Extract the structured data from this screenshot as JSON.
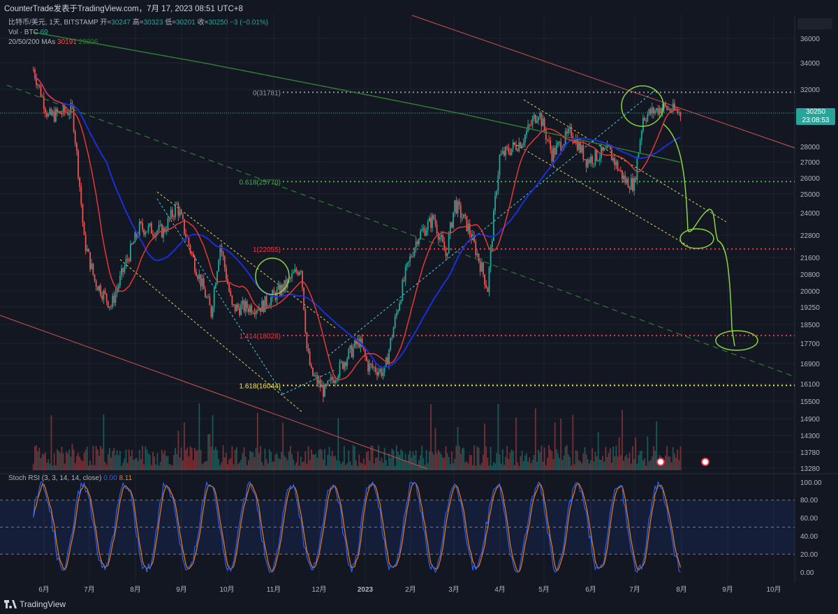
{
  "header": {
    "title": "CounterTrade发表于TradingView.com，7月 17, 2023 08:51 UTC+8"
  },
  "legend": {
    "symbol": "比特币/美元, 1天, BITSTAMP",
    "open_label": "开=",
    "open": "30247",
    "high_label": "高=",
    "high": "30323",
    "low_label": "低=",
    "low": "30201",
    "close_label": "收=",
    "close": "30250",
    "change": "−3 (−0.01%)",
    "vol_label": "Vol · BTC",
    "vol": "69",
    "ma_label": "20/50/200 MAs",
    "ma20": "30191",
    "ma50": "",
    "ma200": "29806"
  },
  "rsi_legend": {
    "label": "Stoch RSI (3, 3, 14, 14, close)",
    "k": "0.00",
    "d": "8.11"
  },
  "price_badge": {
    "price": "30250",
    "timer": "23:08:53"
  },
  "footer": {
    "brand": "TradingView"
  },
  "colors": {
    "up": "#26a69a",
    "down": "#ef5350",
    "ma20": "#e53935",
    "ma50": "#1a2fd6",
    "ma200": "#2e7d32",
    "bg": "#131722"
  },
  "chart_data": [
    {
      "type": "candlestick",
      "symbol": "BTC/USD",
      "y_ticks": [
        "36000",
        "34000",
        "32000",
        "30250",
        "28000",
        "27000",
        "26000",
        "25000",
        "24000",
        "22800",
        "21600",
        "20800",
        "20000",
        "19250",
        "18500",
        "17700",
        "16900",
        "16100",
        "15500",
        "14900",
        "14300",
        "13780",
        "13280"
      ],
      "x_ticks": [
        "6月",
        "7月",
        "8月",
        "9月",
        "10月",
        "11月",
        "12月",
        "2023",
        "2月",
        "3月",
        "4月",
        "5月",
        "6月",
        "7月",
        "8月",
        "9月",
        "10月"
      ],
      "fib_levels": [
        {
          "label": "0(31781)",
          "value": 31781,
          "color": "#9598a1"
        },
        {
          "label": "0.618(25770)",
          "value": 25770,
          "color": "#4caf50"
        },
        {
          "label": "1(22055)",
          "value": 22055,
          "color": "#f23645"
        },
        {
          "label": "1.414(18028)",
          "value": 18028,
          "color": "#f23645"
        },
        {
          "label": "1.618(16044)",
          "value": 16044,
          "color": "#ffeb3b"
        }
      ],
      "close_anchors": [
        {
          "x": "2022-05-10",
          "y": 33500
        },
        {
          "x": "2022-05-20",
          "y": 30000
        },
        {
          "x": "2022-06-05",
          "y": 30500
        },
        {
          "x": "2022-06-13",
          "y": 22500
        },
        {
          "x": "2022-06-20",
          "y": 20500
        },
        {
          "x": "2022-07-01",
          "y": 19300
        },
        {
          "x": "2022-07-20",
          "y": 23200
        },
        {
          "x": "2022-08-05",
          "y": 23000
        },
        {
          "x": "2022-08-14",
          "y": 24400
        },
        {
          "x": "2022-08-25",
          "y": 21500
        },
        {
          "x": "2022-09-06",
          "y": 19000
        },
        {
          "x": "2022-09-12",
          "y": 22300
        },
        {
          "x": "2022-09-20",
          "y": 19200
        },
        {
          "x": "2022-10-10",
          "y": 19300
        },
        {
          "x": "2022-10-25",
          "y": 20200
        },
        {
          "x": "2022-11-05",
          "y": 21200
        },
        {
          "x": "2022-11-09",
          "y": 17500
        },
        {
          "x": "2022-11-12",
          "y": 16500
        },
        {
          "x": "2022-11-21",
          "y": 15800
        },
        {
          "x": "2022-12-05",
          "y": 17100
        },
        {
          "x": "2022-12-14",
          "y": 17800
        },
        {
          "x": "2022-12-20",
          "y": 16800
        },
        {
          "x": "2022-12-31",
          "y": 16550
        },
        {
          "x": "2023-01-14",
          "y": 20800
        },
        {
          "x": "2023-01-22",
          "y": 22700
        },
        {
          "x": "2023-02-02",
          "y": 23700
        },
        {
          "x": "2023-02-10",
          "y": 21700
        },
        {
          "x": "2023-02-16",
          "y": 24500
        },
        {
          "x": "2023-02-25",
          "y": 23200
        },
        {
          "x": "2023-03-10",
          "y": 20100
        },
        {
          "x": "2023-03-18",
          "y": 27300
        },
        {
          "x": "2023-04-02",
          "y": 28400
        },
        {
          "x": "2023-04-13",
          "y": 30400
        },
        {
          "x": "2023-04-22",
          "y": 27500
        },
        {
          "x": "2023-05-05",
          "y": 29000
        },
        {
          "x": "2023-05-15",
          "y": 27100
        },
        {
          "x": "2023-05-30",
          "y": 27700
        },
        {
          "x": "2023-06-10",
          "y": 25800
        },
        {
          "x": "2023-06-16",
          "y": 25600
        },
        {
          "x": "2023-06-22",
          "y": 30000
        },
        {
          "x": "2023-07-05",
          "y": 30700
        },
        {
          "x": "2023-07-17",
          "y": 30250
        }
      ]
    },
    {
      "type": "line",
      "name": "Stoch RSI",
      "y_ticks": [
        "100.00",
        "80.00",
        "60.00",
        "40.00",
        "20.00",
        "0.00"
      ],
      "ylim": [
        0,
        100
      ]
    }
  ]
}
